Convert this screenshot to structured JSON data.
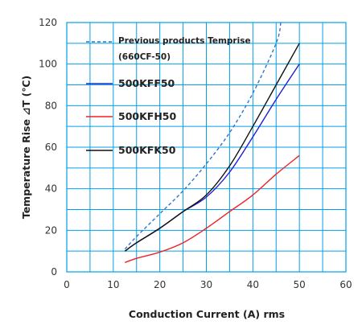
{
  "chart_data": {
    "type": "line",
    "title": "",
    "xlabel": "Conduction Current (A) rms",
    "ylabel": "Temperature Rise ⊿T (℃)",
    "xlim": [
      0,
      60
    ],
    "ylim": [
      0,
      120
    ],
    "x_ticks": [
      "0",
      "10",
      "20",
      "30",
      "40",
      "50",
      "60"
    ],
    "y_ticks": [
      "0",
      "20",
      "40",
      "60",
      "80",
      "100",
      "120"
    ],
    "grid": true,
    "grid_color": "#00a0e9",
    "legend_position": "top-left, inside plot",
    "series": [
      {
        "name": "Previous products Temprise",
        "name_line2": "(660CF-50)",
        "color": "#2e75c9",
        "style": "dashed",
        "x": [
          12.5,
          15,
          20,
          25,
          30,
          35,
          40,
          45,
          46
        ],
        "y": [
          11,
          17,
          28,
          39,
          52,
          67,
          86,
          110,
          120
        ]
      },
      {
        "name": "500KFF50",
        "color": "#1f1fd6",
        "style": "solid",
        "x": [
          12.5,
          15,
          20,
          25,
          30,
          35,
          40,
          45,
          50
        ],
        "y": [
          10,
          14,
          21,
          29,
          36,
          48,
          65,
          83,
          100
        ]
      },
      {
        "name": "500KFH50",
        "color": "#ee2222",
        "style": "solid",
        "x": [
          12.5,
          15,
          20,
          25,
          30,
          35,
          40,
          45,
          50
        ],
        "y": [
          4.5,
          6.5,
          9.5,
          14,
          21,
          29,
          37,
          47,
          56
        ]
      },
      {
        "name": "500KFK50",
        "color": "#111111",
        "style": "solid",
        "x": [
          12.5,
          15,
          20,
          25,
          30,
          35,
          40,
          45,
          50
        ],
        "y": [
          10,
          14,
          21,
          29,
          37,
          51,
          70,
          90,
          110
        ]
      }
    ]
  }
}
